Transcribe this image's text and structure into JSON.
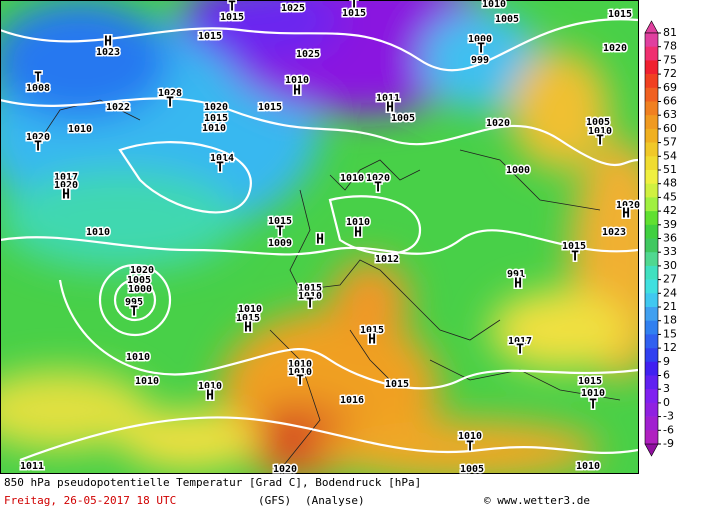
{
  "map": {
    "caption": "850 hPa pseudopotentielle Temperatur [Grad C], Bodendruck [hPa]",
    "date": "Freitag, 26-05-2017  18 UTC",
    "model": "(GFS)",
    "run": "(Analyse)",
    "credit": "© www.wetter3.de",
    "labels": [
      "T",
      1015,
      1025,
      "T",
      1015,
      1010,
      1005,
      1015,
      "H",
      1023,
      1015,
      1000,
      "T",
      999,
      1020,
      1025,
      "T",
      1008,
      1010,
      "H",
      1028,
      "T",
      1011,
      "H",
      1022,
      1015,
      1020,
      1015,
      1010,
      1005,
      1020,
      1005,
      1010,
      "T",
      1010,
      1020,
      "T",
      1014,
      "T",
      1000,
      1010,
      1020,
      "T",
      1017,
      1020,
      "H",
      1020,
      "H",
      1010,
      1015,
      "T",
      1009,
      1010,
      "H",
      1023,
      1015,
      "T",
      1012,
      1020,
      1005,
      1000,
      995,
      "T",
      991,
      "H",
      1015,
      1010,
      "T",
      1010,
      1015,
      "H",
      1015,
      "H",
      1017,
      "T",
      1010,
      1010,
      1010,
      "T",
      1010,
      1015,
      1015,
      1010,
      "T",
      1010,
      "H",
      1016,
      1010,
      "T",
      1011,
      1020,
      1005,
      1010,
      "H"
    ]
  },
  "colorbar": {
    "ticks": [
      81,
      78,
      75,
      72,
      69,
      66,
      63,
      60,
      57,
      54,
      51,
      48,
      45,
      42,
      39,
      36,
      33,
      30,
      27,
      24,
      21,
      18,
      15,
      12,
      9,
      6,
      3,
      0,
      -3,
      -6,
      -9
    ],
    "colors": [
      "#e0409f",
      "#f03070",
      "#f02030",
      "#f04020",
      "#f06020",
      "#f08020",
      "#f09a20",
      "#f0b020",
      "#f0c828",
      "#f0dc30",
      "#f0f040",
      "#d0f040",
      "#a0f040",
      "#60e030",
      "#40d040",
      "#40c860",
      "#50d890",
      "#40e0c0",
      "#40e0e0",
      "#40c8f0",
      "#40a0f0",
      "#3080f0",
      "#3060f0",
      "#3040f0",
      "#4020f0",
      "#6020f0",
      "#8020f0",
      "#9020e0",
      "#a020d0",
      "#b020c0",
      "#9010a0"
    ]
  }
}
